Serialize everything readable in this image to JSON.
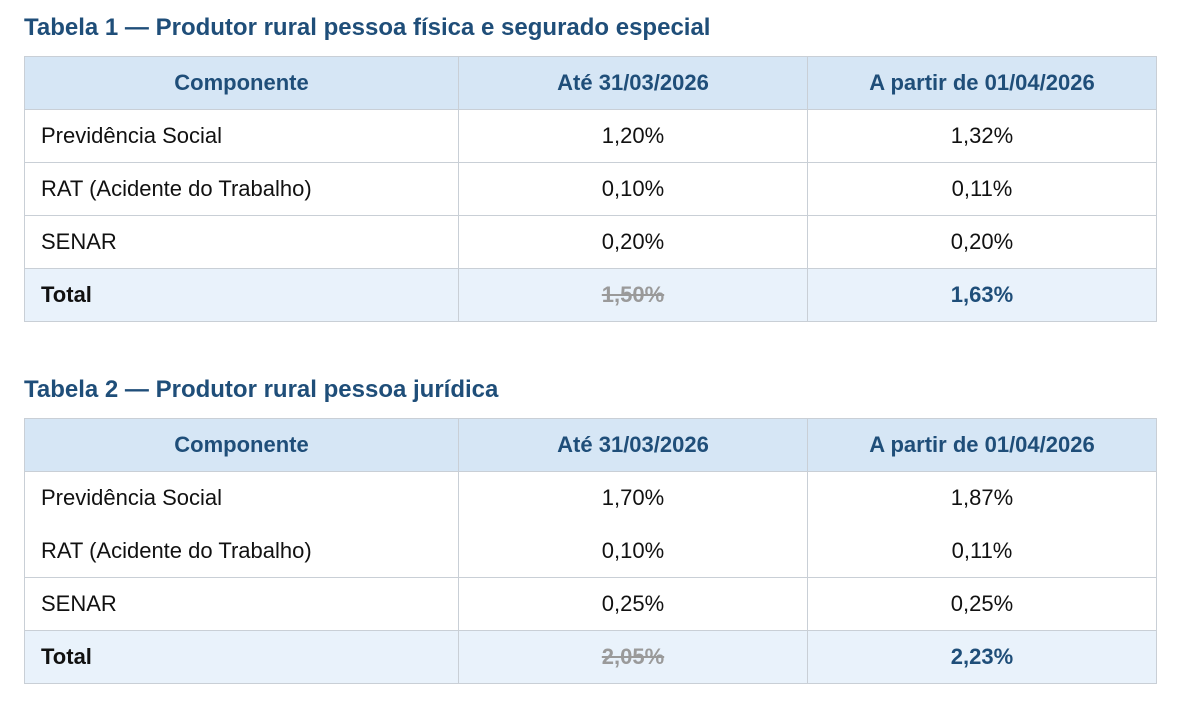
{
  "tables": [
    {
      "title": "Tabela 1 — Produtor rural pessoa física e segurado especial",
      "headers": [
        "Componente",
        "Até 31/03/2026",
        "A partir de 01/04/2026"
      ],
      "rows": [
        {
          "label": "Previdência Social",
          "before": "1,20%",
          "after": "1,32%"
        },
        {
          "label": "RAT (Acidente do Trabalho)",
          "before": "0,10%",
          "after": "0,11%"
        },
        {
          "label": "SENAR",
          "before": "0,20%",
          "after": "0,20%"
        }
      ],
      "total": {
        "label": "Total",
        "before": "1,50%",
        "after": "1,63%"
      }
    },
    {
      "title": "Tabela 2 — Produtor rural pessoa jurídica",
      "headers": [
        "Componente",
        "Até 31/03/2026",
        "A partir de 01/04/2026"
      ],
      "rows": [
        {
          "label": "Previdência Social",
          "before": "1,70%",
          "after": "1,87%"
        },
        {
          "label": "RAT (Acidente do Trabalho)",
          "before": "0,10%",
          "after": "0,11%"
        },
        {
          "label": "SENAR",
          "before": "0,25%",
          "after": "0,25%"
        }
      ],
      "total": {
        "label": "Total",
        "before": "2,05%",
        "after": "2,23%"
      }
    }
  ],
  "colors": {
    "title": "#1f4e79",
    "header_bg": "#d6e6f5",
    "total_bg": "#e9f2fb",
    "old_total": "#9a9a9a",
    "border": "#c9cfd6"
  }
}
